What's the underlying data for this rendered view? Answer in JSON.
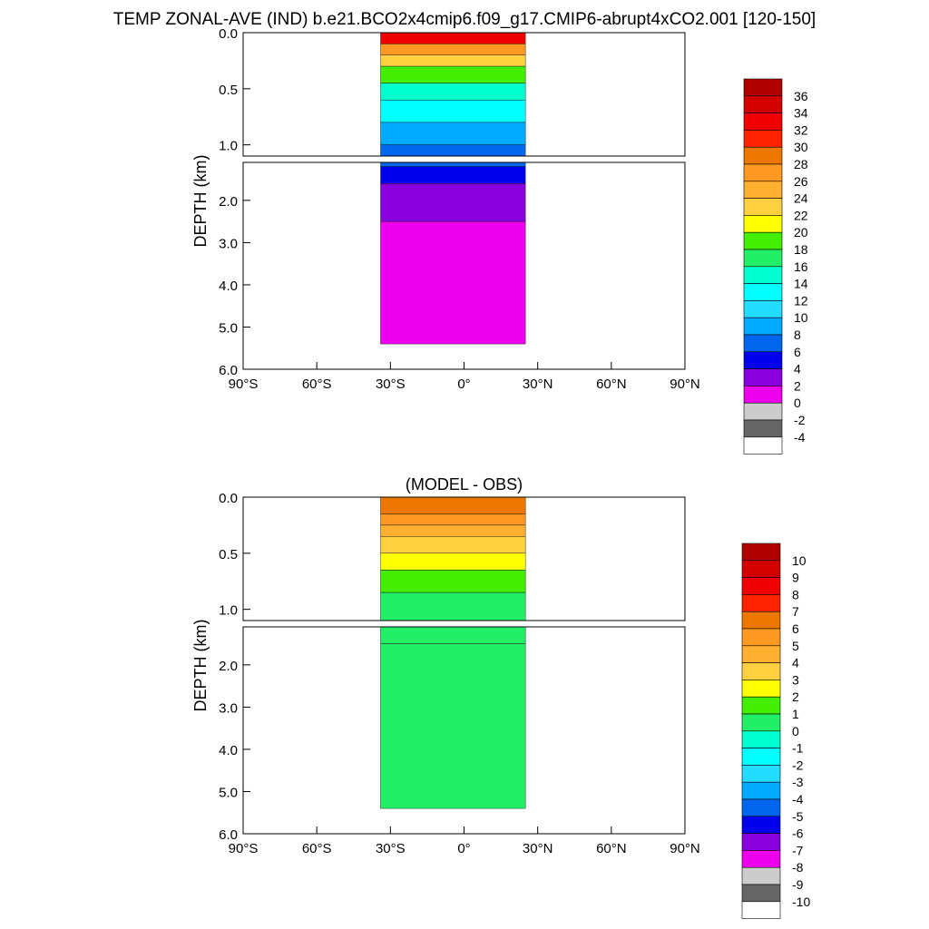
{
  "figure_title": "TEMP ZONAL-AVE (IND) b.e21.BCO2x4cmip6.f09_g17.CMIP6-abrupt4xCO2.001 [120-150]",
  "chart_data": [
    {
      "type": "heatmap",
      "title": "",
      "ylabel": "DEPTH (km)",
      "xlabel": "",
      "xlim": [
        -90,
        90
      ],
      "ylim": [
        6.0,
        0.0
      ],
      "depth_break_km": 1.1,
      "x_tick_labels": [
        "90°S",
        "60°S",
        "30°S",
        "0°",
        "30°N",
        "60°N",
        "90°N"
      ],
      "y_tick_labels_upper": [
        "0.0",
        "0.5",
        "1.0"
      ],
      "y_tick_labels_lower": [
        "2.0",
        "3.0",
        "4.0",
        "5.0",
        "6.0"
      ],
      "data_extent_lat": [
        -34,
        25
      ],
      "colorbar_labels": [
        "36",
        "34",
        "32",
        "30",
        "28",
        "26",
        "24",
        "22",
        "20",
        "18",
        "16",
        "14",
        "12",
        "10",
        "8",
        "6",
        "4",
        "2",
        "0",
        "-2",
        "-4"
      ],
      "colorbar_colors": [
        "#b00000",
        "#d40000",
        "#f00000",
        "#ff2200",
        "#ee7700",
        "#ff9922",
        "#ffb030",
        "#ffd040",
        "#ffff00",
        "#44ee00",
        "#22ee66",
        "#00ffcc",
        "#00ffff",
        "#22ddff",
        "#00aaff",
        "#0066ee",
        "#0000ee",
        "#8800dd",
        "#ee00ee",
        "#cccccc",
        "#666666",
        "#ffffff"
      ],
      "bands": [
        {
          "depth_km": 0.0,
          "value": 32
        },
        {
          "depth_km": 0.1,
          "value": 26
        },
        {
          "depth_km": 0.2,
          "value": 22
        },
        {
          "depth_km": 0.3,
          "value": 19
        },
        {
          "depth_km": 0.45,
          "value": 15
        },
        {
          "depth_km": 0.6,
          "value": 12
        },
        {
          "depth_km": 0.8,
          "value": 9
        },
        {
          "depth_km": 1.0,
          "value": 7
        },
        {
          "depth_km": 1.2,
          "value": 5
        },
        {
          "depth_km": 1.6,
          "value": 3
        },
        {
          "depth_km": 2.5,
          "value": 1
        }
      ]
    },
    {
      "type": "heatmap",
      "title": "(MODEL - OBS)",
      "ylabel": "DEPTH (km)",
      "xlabel": "",
      "xlim": [
        -90,
        90
      ],
      "ylim": [
        6.0,
        0.0
      ],
      "depth_break_km": 1.1,
      "x_tick_labels": [
        "90°S",
        "60°S",
        "30°S",
        "0°",
        "30°N",
        "60°N",
        "90°N"
      ],
      "y_tick_labels_upper": [
        "0.0",
        "0.5",
        "1.0"
      ],
      "y_tick_labels_lower": [
        "2.0",
        "3.0",
        "4.0",
        "5.0",
        "6.0"
      ],
      "data_extent_lat": [
        -34,
        25
      ],
      "colorbar_labels": [
        "10",
        "9",
        "8",
        "7",
        "6",
        "5",
        "4",
        "3",
        "2",
        "1",
        "0",
        "-1",
        "-2",
        "-3",
        "-4",
        "-5",
        "-6",
        "-7",
        "-8",
        "-9",
        "-10"
      ],
      "colorbar_colors": [
        "#b00000",
        "#d40000",
        "#f00000",
        "#ff2200",
        "#ee7700",
        "#ff9922",
        "#ffb030",
        "#ffd040",
        "#ffff00",
        "#44ee00",
        "#22ee66",
        "#00ffcc",
        "#00ffff",
        "#22ddff",
        "#00aaff",
        "#0066ee",
        "#0000ee",
        "#8800dd",
        "#ee00ee",
        "#cccccc",
        "#666666",
        "#ffffff"
      ],
      "bands": [
        {
          "depth_km": 0.0,
          "value": 6.5
        },
        {
          "depth_km": 0.15,
          "value": 5.5
        },
        {
          "depth_km": 0.25,
          "value": 4.5
        },
        {
          "depth_km": 0.35,
          "value": 3.5
        },
        {
          "depth_km": 0.5,
          "value": 2.5
        },
        {
          "depth_km": 0.65,
          "value": 1.5
        },
        {
          "depth_km": 0.85,
          "value": 0.5
        },
        {
          "depth_km": 1.5,
          "value": 0.3
        }
      ]
    }
  ]
}
